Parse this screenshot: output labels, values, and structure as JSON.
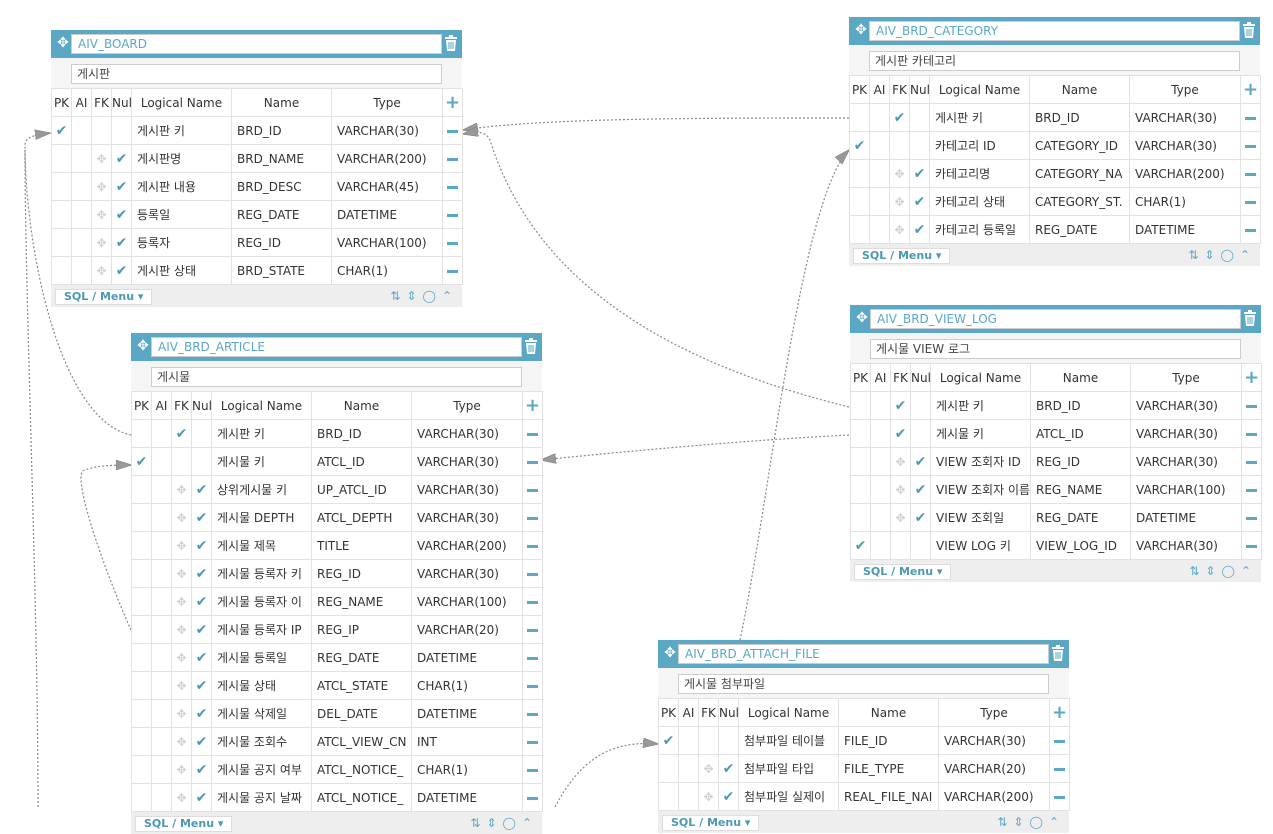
{
  "ui": {
    "header_labels": {
      "pk": "PK",
      "ai": "AI",
      "fk": "FK",
      "null": "Null",
      "logical": "Logical Name",
      "name": "Name",
      "type": "Type"
    },
    "footer_menu_label": "SQL / Menu",
    "colors": {
      "accent": "#5aa7c6",
      "check": "#4d98b3",
      "line": "#888888"
    }
  },
  "tables": {
    "aiv_board": {
      "name": "AIV_BOARD",
      "comment": "게시판",
      "rows": [
        {
          "pk": true,
          "fk": false,
          "null_chk": false,
          "logical": "게시판 키",
          "name": "BRD_ID",
          "type": "VARCHAR(30)"
        },
        {
          "pk": false,
          "fk": false,
          "null_chk": true,
          "logical": "게시판명",
          "name": "BRD_NAME",
          "type": "VARCHAR(200)"
        },
        {
          "pk": false,
          "fk": false,
          "null_chk": true,
          "logical": "게시판 내용",
          "name": "BRD_DESC",
          "type": "VARCHAR(45)"
        },
        {
          "pk": false,
          "fk": false,
          "null_chk": true,
          "logical": "등록일",
          "name": "REG_DATE",
          "type": "DATETIME"
        },
        {
          "pk": false,
          "fk": false,
          "null_chk": true,
          "logical": "등록자",
          "name": "REG_ID",
          "type": "VARCHAR(100)"
        },
        {
          "pk": false,
          "fk": false,
          "null_chk": true,
          "logical": "게시판 상태",
          "name": "BRD_STATE",
          "type": "CHAR(1)"
        }
      ]
    },
    "aiv_brd_category": {
      "name": "AIV_BRD_CATEGORY",
      "comment": "게시판 카테고리",
      "rows": [
        {
          "pk": false,
          "fk": true,
          "null_chk": false,
          "logical": "게시판 키",
          "name": "BRD_ID",
          "type": "VARCHAR(30)"
        },
        {
          "pk": true,
          "fk": false,
          "null_chk": false,
          "logical": "카테고리 ID",
          "name": "CATEGORY_ID",
          "type": "VARCHAR(30)"
        },
        {
          "pk": false,
          "fk": false,
          "null_chk": true,
          "logical": "카테고리명",
          "name": "CATEGORY_NA",
          "type": "VARCHAR(200)"
        },
        {
          "pk": false,
          "fk": false,
          "null_chk": true,
          "logical": "카테고리 상태",
          "name": "CATEGORY_ST.",
          "type": "CHAR(1)"
        },
        {
          "pk": false,
          "fk": false,
          "null_chk": true,
          "logical": "카테고리 등록일",
          "name": "REG_DATE",
          "type": "DATETIME"
        }
      ]
    },
    "aiv_brd_article": {
      "name": "AIV_BRD_ARTICLE",
      "comment": "게시물",
      "rows": [
        {
          "pk": false,
          "fk": true,
          "null_chk": false,
          "logical": "게시판 키",
          "name": "BRD_ID",
          "type": "VARCHAR(30)"
        },
        {
          "pk": true,
          "fk": false,
          "null_chk": false,
          "logical": "게시물 키",
          "name": "ATCL_ID",
          "type": "VARCHAR(30)"
        },
        {
          "pk": false,
          "fk": false,
          "null_chk": true,
          "logical": "상위게시물 키",
          "name": "UP_ATCL_ID",
          "type": "VARCHAR(30)"
        },
        {
          "pk": false,
          "fk": false,
          "null_chk": true,
          "logical": "게시물 DEPTH",
          "name": "ATCL_DEPTH",
          "type": "VARCHAR(30)"
        },
        {
          "pk": false,
          "fk": false,
          "null_chk": true,
          "logical": "게시물 제목",
          "name": "TITLE",
          "type": "VARCHAR(200)"
        },
        {
          "pk": false,
          "fk": false,
          "null_chk": true,
          "logical": "게시물 등록자 키",
          "name": "REG_ID",
          "type": "VARCHAR(30)"
        },
        {
          "pk": false,
          "fk": false,
          "null_chk": true,
          "logical": "게시물 등록자 이",
          "name": "REG_NAME",
          "type": "VARCHAR(100)"
        },
        {
          "pk": false,
          "fk": false,
          "null_chk": true,
          "logical": "게시물 등록자 IP",
          "name": "REG_IP",
          "type": "VARCHAR(20)"
        },
        {
          "pk": false,
          "fk": false,
          "null_chk": true,
          "logical": "게시물 등록일",
          "name": "REG_DATE",
          "type": "DATETIME"
        },
        {
          "pk": false,
          "fk": false,
          "null_chk": true,
          "logical": "게시물 상태",
          "name": "ATCL_STATE",
          "type": "CHAR(1)"
        },
        {
          "pk": false,
          "fk": false,
          "null_chk": true,
          "logical": "게시물 삭제일",
          "name": "DEL_DATE",
          "type": "DATETIME"
        },
        {
          "pk": false,
          "fk": false,
          "null_chk": true,
          "logical": "게시물 조회수",
          "name": "ATCL_VIEW_CN",
          "type": "INT"
        },
        {
          "pk": false,
          "fk": false,
          "null_chk": true,
          "logical": "게시물 공지 여부",
          "name": "ATCL_NOTICE_",
          "type": "CHAR(1)"
        },
        {
          "pk": false,
          "fk": false,
          "null_chk": true,
          "logical": "게시물 공지 날짜",
          "name": "ATCL_NOTICE_",
          "type": "DATETIME"
        }
      ]
    },
    "aiv_brd_view_log": {
      "name": "AIV_BRD_VIEW_LOG",
      "comment": "게시물 VIEW 로그",
      "rows": [
        {
          "pk": false,
          "fk": true,
          "null_chk": false,
          "logical": "게시판 키",
          "name": "BRD_ID",
          "type": "VARCHAR(30)"
        },
        {
          "pk": false,
          "fk": true,
          "null_chk": false,
          "logical": "게시물 키",
          "name": "ATCL_ID",
          "type": "VARCHAR(30)"
        },
        {
          "pk": false,
          "fk": false,
          "null_chk": true,
          "logical": "VIEW 조회자 ID",
          "name": "REG_ID",
          "type": "VARCHAR(30)"
        },
        {
          "pk": false,
          "fk": false,
          "null_chk": true,
          "logical": "VIEW 조회자 이름",
          "name": "REG_NAME",
          "type": "VARCHAR(100)"
        },
        {
          "pk": false,
          "fk": false,
          "null_chk": true,
          "logical": "VIEW 조회일",
          "name": "REG_DATE",
          "type": "DATETIME"
        },
        {
          "pk": true,
          "fk": false,
          "null_chk": false,
          "logical": "VIEW LOG 키",
          "name": "VIEW_LOG_ID",
          "type": "VARCHAR(30)"
        }
      ]
    },
    "aiv_brd_attach_file": {
      "name": "AIV_BRD_ATTACH_FILE",
      "comment": "게시물 첨부파일",
      "rows": [
        {
          "pk": true,
          "fk": false,
          "null_chk": false,
          "logical": "첨부파일 테이블",
          "name": "FILE_ID",
          "type": "VARCHAR(30)"
        },
        {
          "pk": false,
          "fk": false,
          "null_chk": true,
          "logical": "첨부파일 타입",
          "name": "FILE_TYPE",
          "type": "VARCHAR(20)"
        },
        {
          "pk": false,
          "fk": false,
          "null_chk": true,
          "logical": "첨부파일 실제이",
          "name": "REAL_FILE_NAI",
          "type": "VARCHAR(200)"
        }
      ]
    }
  }
}
